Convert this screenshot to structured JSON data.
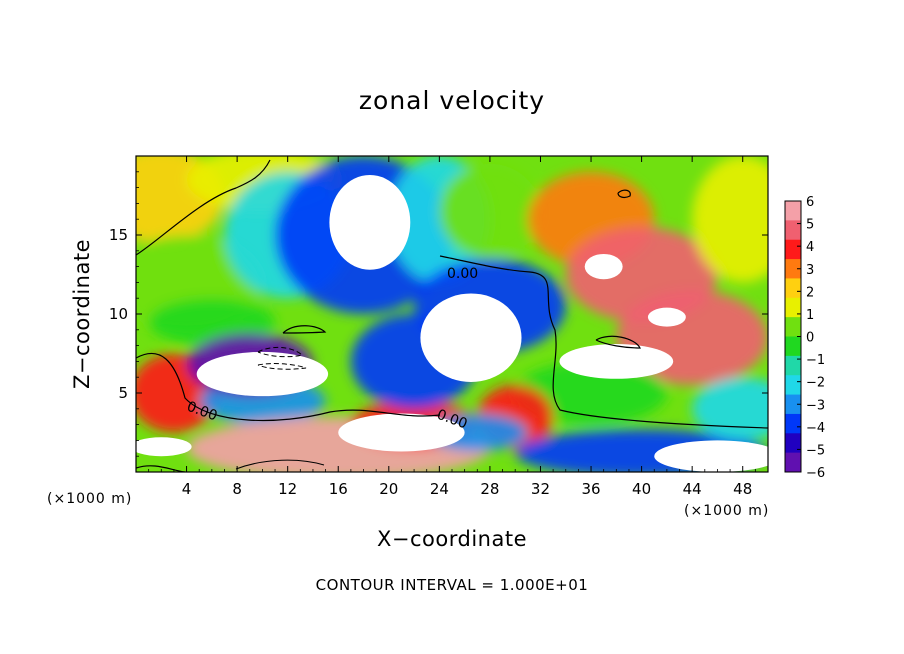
{
  "chart_data": {
    "type": "heatmap",
    "title": "zonal velocity",
    "xlabel": "X−coordinate",
    "ylabel": "Z−coordinate",
    "x_unit_left": "(×1000 m)",
    "x_unit_right": "(×1000 m)",
    "footnote": "CONTOUR INTERVAL = 1.000E+01",
    "xlim": [
      0,
      50
    ],
    "ylim": [
      0,
      20
    ],
    "x_ticks": [
      4,
      8,
      12,
      16,
      20,
      24,
      28,
      32,
      36,
      40,
      44,
      48
    ],
    "x_tick_labels": [
      "4",
      "8",
      "12",
      "16",
      "20",
      "24",
      "28",
      "32",
      "36",
      "40",
      "44",
      "48"
    ],
    "y_ticks": [
      5,
      10,
      15
    ],
    "y_tick_labels": [
      "5",
      "10",
      "15"
    ],
    "colorbar": {
      "min": -6,
      "max": 6,
      "ticks": [
        6,
        5,
        4,
        3,
        2,
        1,
        0,
        -1,
        -2,
        -3,
        -4,
        -5,
        -6
      ],
      "tick_labels": [
        "6",
        "5",
        "4",
        "3",
        "2",
        "1",
        "0",
        "−1",
        "−2",
        "−3",
        "−4",
        "−5",
        "−6"
      ],
      "colors_top_to_bottom": [
        "#f4a0a8",
        "#f06070",
        "#ff1a1a",
        "#ff7a10",
        "#ffd010",
        "#e8f000",
        "#70e010",
        "#20d820",
        "#20d8a8",
        "#20d8e8",
        "#1890f0",
        "#0038f8",
        "#2000c0",
        "#6010b0"
      ]
    },
    "contour_labels": [
      "0.00",
      "0.00",
      "0.00"
    ],
    "field_blobs": [
      {
        "x": 2,
        "z": 17.5,
        "rx": 5,
        "rz": 3,
        "v": 1.8
      },
      {
        "x": 10,
        "z": 18.5,
        "rx": 6,
        "rz": 2,
        "v": 1.0
      },
      {
        "x": 4,
        "z": 12,
        "rx": 6,
        "rz": 3,
        "v": 0.4
      },
      {
        "x": 6,
        "z": 9.5,
        "rx": 5,
        "rz": 1.5,
        "v": -0.6
      },
      {
        "x": 12,
        "z": 15,
        "rx": 5,
        "rz": 4,
        "v": -1.8
      },
      {
        "x": 18,
        "z": 15,
        "rx": 7,
        "rz": 5,
        "v": -4.2
      },
      {
        "x": 24,
        "z": 16,
        "rx": 4,
        "rz": 4,
        "v": -2.4
      },
      {
        "x": 28,
        "z": 16.5,
        "rx": 4,
        "rz": 3,
        "v": 0.6
      },
      {
        "x": 28,
        "z": 10.5,
        "rx": 6,
        "rz": 3,
        "v": -3.8
      },
      {
        "x": 36,
        "z": 16,
        "rx": 5,
        "rz": 3,
        "v": 2.8
      },
      {
        "x": 40,
        "z": 12.5,
        "rx": 6,
        "rz": 3,
        "v": 4.6
      },
      {
        "x": 44,
        "z": 8.5,
        "rx": 6,
        "rz": 3,
        "v": 4.4
      },
      {
        "x": 48,
        "z": 16,
        "rx": 4,
        "rz": 4,
        "v": 1.2
      },
      {
        "x": 36,
        "z": 5,
        "rx": 6,
        "rz": 2,
        "v": -0.6
      },
      {
        "x": 3,
        "z": 5,
        "rx": 3.5,
        "rz": 2.5,
        "v": 4.0
      },
      {
        "x": 10,
        "z": 4.5,
        "rx": 5,
        "rz": 1.5,
        "v": -3.4
      },
      {
        "x": 16,
        "z": 1.5,
        "rx": 12,
        "rz": 2,
        "v": 5.4
      },
      {
        "x": 22,
        "z": 3,
        "rx": 5,
        "rz": 1.5,
        "v": 3.8
      },
      {
        "x": 30,
        "z": 3.5,
        "rx": 3,
        "rz": 2,
        "v": 4.0
      },
      {
        "x": 27,
        "z": 2.5,
        "rx": 4,
        "rz": 1.2,
        "v": -3.2
      },
      {
        "x": 40,
        "z": 1.2,
        "rx": 10,
        "rz": 1.5,
        "v": -3.8
      },
      {
        "x": 48,
        "z": 4,
        "rx": 4,
        "rz": 2,
        "v": -2.0
      },
      {
        "x": 9,
        "z": 6.8,
        "rx": 5,
        "rz": 2,
        "v": -5.2
      },
      {
        "x": 22,
        "z": 7,
        "rx": 5,
        "rz": 3,
        "v": -4.2
      }
    ],
    "saturated_regions": [
      {
        "kind": "max",
        "x": 18.5,
        "z": 15.8,
        "rx": 3.2,
        "rz": 3.0
      },
      {
        "kind": "max",
        "x": 10,
        "z": 6.2,
        "rx": 5.2,
        "rz": 1.4
      },
      {
        "kind": "max",
        "x": 26.5,
        "z": 8.5,
        "rx": 4.0,
        "rz": 2.8
      },
      {
        "kind": "max",
        "x": 21,
        "z": 2.5,
        "rx": 5.0,
        "rz": 1.2
      },
      {
        "kind": "max",
        "x": 38,
        "z": 7.0,
        "rx": 4.5,
        "rz": 1.1
      },
      {
        "kind": "max",
        "x": 2,
        "z": 1.6,
        "rx": 2.4,
        "rz": 0.6
      },
      {
        "kind": "max",
        "x": 46,
        "z": 1.0,
        "rx": 5.0,
        "rz": 1.0
      },
      {
        "kind": "max",
        "x": 37,
        "z": 13.0,
        "rx": 1.5,
        "rz": 0.8
      },
      {
        "kind": "max",
        "x": 42,
        "z": 9.8,
        "rx": 1.5,
        "rz": 0.6
      }
    ]
  }
}
